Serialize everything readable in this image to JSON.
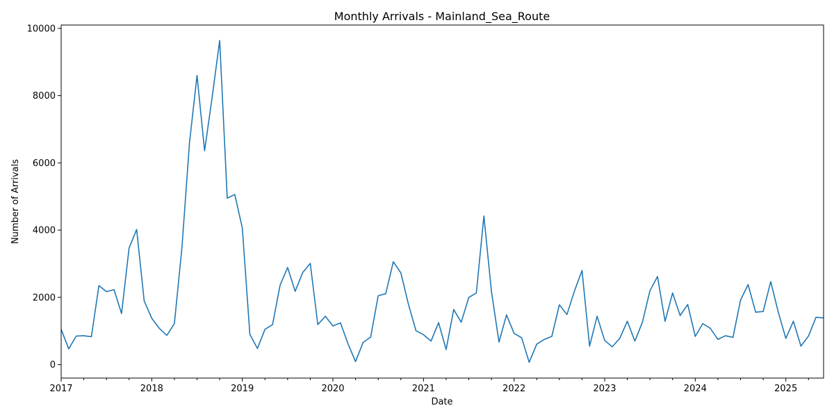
{
  "chart_data": {
    "type": "line",
    "title": "Monthly Arrivals - Mainland_Sea_Route",
    "xlabel": "Date",
    "ylabel": "Number of Arrivals",
    "x_start": "2017-01",
    "x_end": "2025-06",
    "xlim": [
      "2017-01",
      "2025-06"
    ],
    "ylim": [
      -400,
      10100
    ],
    "x_major_ticks": [
      "2017",
      "2018",
      "2019",
      "2020",
      "2021",
      "2022",
      "2023",
      "2024",
      "2025"
    ],
    "y_ticks": [
      0,
      2000,
      4000,
      6000,
      8000,
      10000
    ],
    "y_tick_labels": [
      "0",
      "2000",
      "4000",
      "6000",
      "8000",
      "10000"
    ],
    "grid": false,
    "line_color": "#1f77b4",
    "series": [
      {
        "x": [
          "2017-01",
          "2017-02",
          "2017-03",
          "2017-04",
          "2017-05",
          "2017-06",
          "2017-07",
          "2017-08",
          "2017-09",
          "2017-10",
          "2017-11",
          "2017-12",
          "2018-01",
          "2018-02",
          "2018-03",
          "2018-04",
          "2018-05",
          "2018-06",
          "2018-07",
          "2018-08",
          "2018-09",
          "2018-10",
          "2018-11",
          "2018-12",
          "2019-01",
          "2019-02",
          "2019-03",
          "2019-04",
          "2019-05",
          "2019-06",
          "2019-07",
          "2019-08",
          "2019-09",
          "2019-10",
          "2019-11",
          "2019-12",
          "2020-01",
          "2020-02",
          "2020-03",
          "2020-04",
          "2020-05",
          "2020-06",
          "2020-07",
          "2020-08",
          "2020-09",
          "2020-10",
          "2020-11",
          "2020-12",
          "2021-01",
          "2021-02",
          "2021-03",
          "2021-04",
          "2021-05",
          "2021-06",
          "2021-07",
          "2021-08",
          "2021-09",
          "2021-10",
          "2021-11",
          "2021-12",
          "2022-01",
          "2022-02",
          "2022-03",
          "2022-04",
          "2022-05",
          "2022-06",
          "2022-07",
          "2022-08",
          "2022-09",
          "2022-10",
          "2022-11",
          "2022-12",
          "2023-01",
          "2023-02",
          "2023-03",
          "2023-04",
          "2023-05",
          "2023-06",
          "2023-07",
          "2023-08",
          "2023-09",
          "2023-10",
          "2023-11",
          "2023-12",
          "2024-01",
          "2024-02",
          "2024-03",
          "2024-04",
          "2024-05",
          "2024-06",
          "2024-07",
          "2024-08",
          "2024-09",
          "2024-10",
          "2024-11",
          "2024-12",
          "2025-01",
          "2025-02",
          "2025-03",
          "2025-04",
          "2025-05",
          "2025-06"
        ],
        "values": [
          1050,
          470,
          850,
          860,
          830,
          2350,
          2170,
          2230,
          1520,
          3470,
          4020,
          1890,
          1380,
          1080,
          870,
          1220,
          3480,
          6600,
          8600,
          6360,
          7950,
          9640,
          4950,
          5060,
          4060,
          900,
          480,
          1050,
          1190,
          2360,
          2890,
          2180,
          2740,
          3010,
          1190,
          1440,
          1150,
          1240,
          620,
          90,
          660,
          820,
          2050,
          2110,
          3060,
          2730,
          1800,
          1010,
          890,
          700,
          1250,
          450,
          1640,
          1260,
          2000,
          2130,
          4420,
          2180,
          670,
          1480,
          930,
          800,
          70,
          610,
          750,
          840,
          1780,
          1490,
          2190,
          2800,
          550,
          1440,
          720,
          530,
          780,
          1290,
          700,
          1260,
          2200,
          2620,
          1290,
          2130,
          1460,
          1790,
          840,
          1220,
          1080,
          750,
          860,
          810,
          1920,
          2380,
          1560,
          1580,
          2470,
          1560,
          780,
          1290,
          550,
          850,
          1410,
          1390
        ]
      }
    ]
  }
}
